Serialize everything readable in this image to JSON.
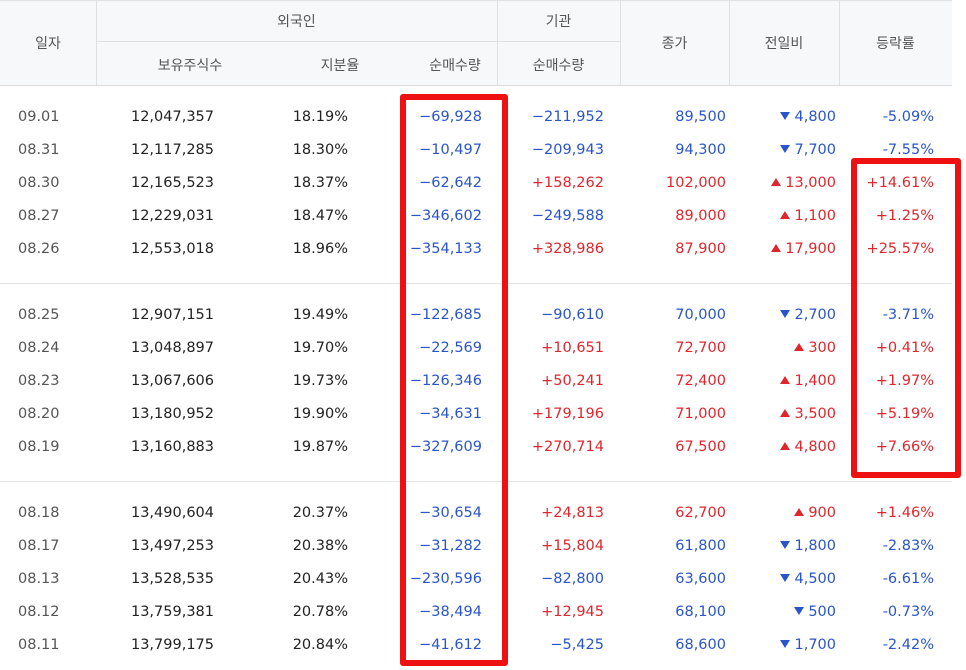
{
  "header": {
    "date": "일자",
    "foreign_group": "외국인",
    "institution_group": "기관",
    "foreign_holdings": "보유주식수",
    "foreign_ratio": "지분율",
    "foreign_net": "순매수량",
    "institution_net": "순매수량",
    "close": "종가",
    "change": "전일비",
    "rate": "등락률"
  },
  "groups": [
    [
      {
        "date": "09.01",
        "holdings": "12,047,357",
        "ratio": "18.19%",
        "fnet": "−69,928",
        "fnet_dir": "down",
        "inet": "−211,952",
        "inet_dir": "down",
        "close": "89,500",
        "close_dir": "down",
        "diff": "4,800",
        "diff_dir": "down",
        "rate": "-5.09%",
        "rate_dir": "down"
      },
      {
        "date": "08.31",
        "holdings": "12,117,285",
        "ratio": "18.30%",
        "fnet": "−10,497",
        "fnet_dir": "down",
        "inet": "−209,943",
        "inet_dir": "down",
        "close": "94,300",
        "close_dir": "down",
        "diff": "7,700",
        "diff_dir": "down",
        "rate": "-7.55%",
        "rate_dir": "down"
      },
      {
        "date": "08.30",
        "holdings": "12,165,523",
        "ratio": "18.37%",
        "fnet": "−62,642",
        "fnet_dir": "down",
        "inet": "+158,262",
        "inet_dir": "up",
        "close": "102,000",
        "close_dir": "up",
        "diff": "13,000",
        "diff_dir": "up",
        "rate": "+14.61%",
        "rate_dir": "up"
      },
      {
        "date": "08.27",
        "holdings": "12,229,031",
        "ratio": "18.47%",
        "fnet": "−346,602",
        "fnet_dir": "down",
        "inet": "−249,588",
        "inet_dir": "down",
        "close": "89,000",
        "close_dir": "up",
        "diff": "1,100",
        "diff_dir": "up",
        "rate": "+1.25%",
        "rate_dir": "up"
      },
      {
        "date": "08.26",
        "holdings": "12,553,018",
        "ratio": "18.96%",
        "fnet": "−354,133",
        "fnet_dir": "down",
        "inet": "+328,986",
        "inet_dir": "up",
        "close": "87,900",
        "close_dir": "up",
        "diff": "17,900",
        "diff_dir": "up",
        "rate": "+25.57%",
        "rate_dir": "up"
      }
    ],
    [
      {
        "date": "08.25",
        "holdings": "12,907,151",
        "ratio": "19.49%",
        "fnet": "−122,685",
        "fnet_dir": "down",
        "inet": "−90,610",
        "inet_dir": "down",
        "close": "70,000",
        "close_dir": "down",
        "diff": "2,700",
        "diff_dir": "down",
        "rate": "-3.71%",
        "rate_dir": "down"
      },
      {
        "date": "08.24",
        "holdings": "13,048,897",
        "ratio": "19.70%",
        "fnet": "−22,569",
        "fnet_dir": "down",
        "inet": "+10,651",
        "inet_dir": "up",
        "close": "72,700",
        "close_dir": "up",
        "diff": "300",
        "diff_dir": "up",
        "rate": "+0.41%",
        "rate_dir": "up"
      },
      {
        "date": "08.23",
        "holdings": "13,067,606",
        "ratio": "19.73%",
        "fnet": "−126,346",
        "fnet_dir": "down",
        "inet": "+50,241",
        "inet_dir": "up",
        "close": "72,400",
        "close_dir": "up",
        "diff": "1,400",
        "diff_dir": "up",
        "rate": "+1.97%",
        "rate_dir": "up"
      },
      {
        "date": "08.20",
        "holdings": "13,180,952",
        "ratio": "19.90%",
        "fnet": "−34,631",
        "fnet_dir": "down",
        "inet": "+179,196",
        "inet_dir": "up",
        "close": "71,000",
        "close_dir": "up",
        "diff": "3,500",
        "diff_dir": "up",
        "rate": "+5.19%",
        "rate_dir": "up"
      },
      {
        "date": "08.19",
        "holdings": "13,160,883",
        "ratio": "19.87%",
        "fnet": "−327,609",
        "fnet_dir": "down",
        "inet": "+270,714",
        "inet_dir": "up",
        "close": "67,500",
        "close_dir": "up",
        "diff": "4,800",
        "diff_dir": "up",
        "rate": "+7.66%",
        "rate_dir": "up"
      }
    ],
    [
      {
        "date": "08.18",
        "holdings": "13,490,604",
        "ratio": "20.37%",
        "fnet": "−30,654",
        "fnet_dir": "down",
        "inet": "+24,813",
        "inet_dir": "up",
        "close": "62,700",
        "close_dir": "up",
        "diff": "900",
        "diff_dir": "up",
        "rate": "+1.46%",
        "rate_dir": "up"
      },
      {
        "date": "08.17",
        "holdings": "13,497,253",
        "ratio": "20.38%",
        "fnet": "−31,282",
        "fnet_dir": "down",
        "inet": "+15,804",
        "inet_dir": "up",
        "close": "61,800",
        "close_dir": "down",
        "diff": "1,800",
        "diff_dir": "down",
        "rate": "-2.83%",
        "rate_dir": "down"
      },
      {
        "date": "08.13",
        "holdings": "13,528,535",
        "ratio": "20.43%",
        "fnet": "−230,596",
        "fnet_dir": "down",
        "inet": "−82,800",
        "inet_dir": "down",
        "close": "63,600",
        "close_dir": "down",
        "diff": "4,500",
        "diff_dir": "down",
        "rate": "-6.61%",
        "rate_dir": "down"
      },
      {
        "date": "08.12",
        "holdings": "13,759,381",
        "ratio": "20.78%",
        "fnet": "−38,494",
        "fnet_dir": "down",
        "inet": "+12,945",
        "inet_dir": "up",
        "close": "68,100",
        "close_dir": "down",
        "diff": "500",
        "diff_dir": "down",
        "rate": "-0.73%",
        "rate_dir": "down"
      },
      {
        "date": "08.11",
        "holdings": "13,799,175",
        "ratio": "20.84%",
        "fnet": "−41,612",
        "fnet_dir": "down",
        "inet": "−5,425",
        "inet_dir": "down",
        "close": "68,600",
        "close_dir": "down",
        "diff": "1,700",
        "diff_dir": "down",
        "rate": "-2.42%",
        "rate_dir": "down"
      }
    ]
  ],
  "highlight_color": "#ee1111"
}
